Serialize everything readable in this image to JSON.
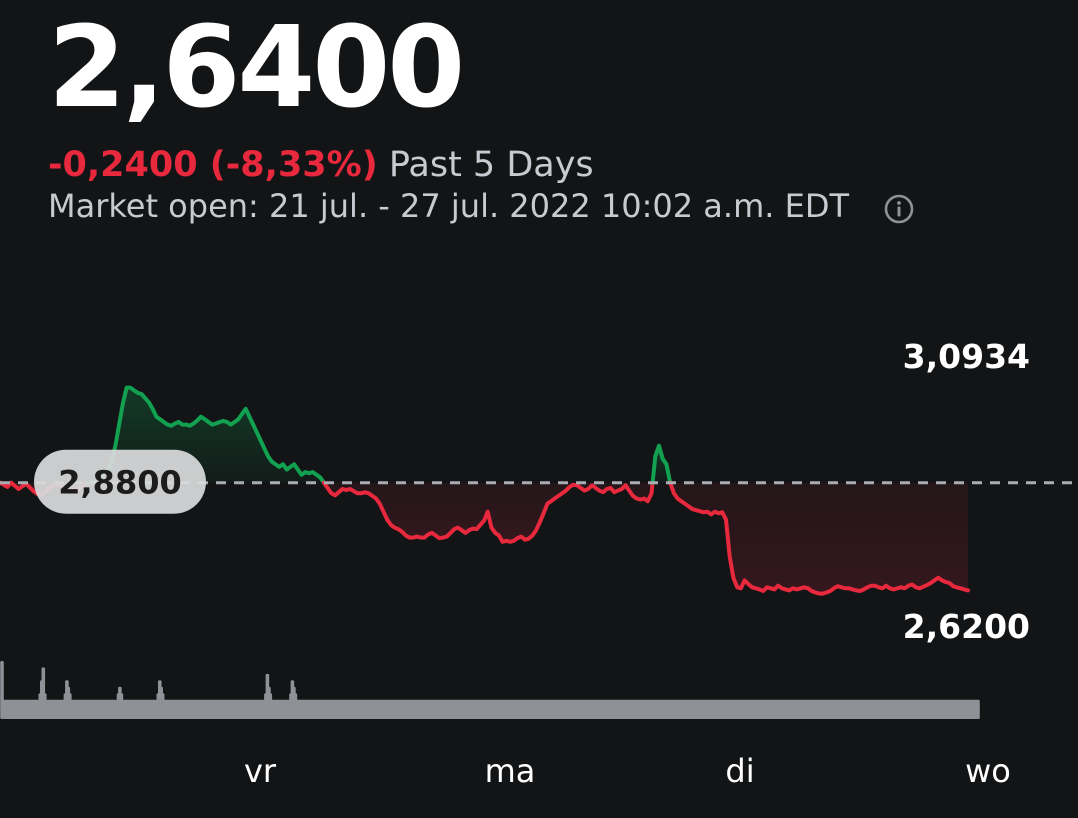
{
  "header": {
    "price": "2,6400",
    "change": "-0,2400 (-8,33%)",
    "period": "Past 5 Days",
    "market_status": "Market open: 21 jul. - 27 jul. 2022 10:02 a.m. EDT",
    "info_icon": "info-icon"
  },
  "colors": {
    "up": "#12a150",
    "down": "#e8293d",
    "background": "#121416",
    "volume": "#8e9297"
  },
  "chart_data": {
    "type": "line",
    "x_tick_labels": [
      "vr",
      "ma",
      "di",
      "wo"
    ],
    "y_axis_labels": {
      "high": "3,0934",
      "low": "2,6200"
    },
    "ylim": [
      2.62,
      3.0934
    ],
    "previous_close": 2.88,
    "previous_close_label": "2,8800",
    "grid": false,
    "series": [
      {
        "values": [
          2.88,
          2.876,
          2.872,
          2.88,
          2.874,
          2.868,
          2.873,
          2.878,
          2.871,
          2.864,
          2.859,
          2.856,
          2.861,
          2.869,
          2.874,
          2.876,
          2.877,
          2.872,
          2.87,
          2.868,
          2.866,
          2.867,
          2.872,
          2.878,
          2.881,
          2.88,
          2.882,
          2.888,
          2.9,
          2.905,
          2.92,
          2.95,
          2.99,
          3.03,
          3.06,
          3.06,
          3.055,
          3.05,
          3.048,
          3.04,
          3.032,
          3.02,
          3.005,
          3.0,
          2.995,
          2.99,
          2.988,
          2.992,
          2.995,
          2.99,
          2.99,
          2.988,
          2.992,
          2.998,
          3.005,
          3.0,
          2.995,
          2.99,
          2.992,
          2.995,
          2.997,
          2.995,
          2.99,
          2.995,
          3.0,
          3.01,
          3.02,
          3.005,
          2.99,
          2.975,
          2.96,
          2.945,
          2.93,
          2.92,
          2.915,
          2.91,
          2.915,
          2.905,
          2.91,
          2.915,
          2.905,
          2.895,
          2.9,
          2.898,
          2.9,
          2.895,
          2.89,
          2.88,
          2.87,
          2.86,
          2.856,
          2.862,
          2.868,
          2.866,
          2.868,
          2.864,
          2.86,
          2.86,
          2.862,
          2.86,
          2.855,
          2.85,
          2.84,
          2.825,
          2.81,
          2.8,
          2.795,
          2.792,
          2.787,
          2.78,
          2.776,
          2.776,
          2.778,
          2.776,
          2.776,
          2.782,
          2.785,
          2.78,
          2.775,
          2.776,
          2.778,
          2.785,
          2.792,
          2.795,
          2.79,
          2.785,
          2.79,
          2.793,
          2.792,
          2.8,
          2.808,
          2.825,
          2.795,
          2.785,
          2.78,
          2.768,
          2.77,
          2.768,
          2.77,
          2.775,
          2.778,
          2.772,
          2.774,
          2.78,
          2.79,
          2.805,
          2.822,
          2.84,
          2.845,
          2.85,
          2.855,
          2.86,
          2.865,
          2.872,
          2.876,
          2.875,
          2.87,
          2.865,
          2.868,
          2.875,
          2.87,
          2.865,
          2.862,
          2.868,
          2.87,
          2.862,
          2.865,
          2.868,
          2.875,
          2.865,
          2.855,
          2.85,
          2.848,
          2.85,
          2.845,
          2.86,
          2.93,
          2.95,
          2.925,
          2.915,
          2.88,
          2.86,
          2.85,
          2.845,
          2.84,
          2.835,
          2.83,
          2.828,
          2.826,
          2.824,
          2.825,
          2.82,
          2.825,
          2.822,
          2.824,
          2.81,
          2.74,
          2.7,
          2.682,
          2.68,
          2.695,
          2.688,
          2.682,
          2.68,
          2.678,
          2.675,
          2.682,
          2.68,
          2.678,
          2.685,
          2.68,
          2.678,
          2.676,
          2.68,
          2.678,
          2.68,
          2.682,
          2.68,
          2.675,
          2.672,
          2.67,
          2.67,
          2.672,
          2.675,
          2.68,
          2.684,
          2.682,
          2.68,
          2.68,
          2.678,
          2.676,
          2.675,
          2.678,
          2.682,
          2.685,
          2.685,
          2.682,
          2.68,
          2.685,
          2.68,
          2.678,
          2.68,
          2.682,
          2.68,
          2.685,
          2.687,
          2.682,
          2.68,
          2.683,
          2.686,
          2.69,
          2.695,
          2.7,
          2.695,
          2.692,
          2.69,
          2.684,
          2.682,
          2.68,
          2.678,
          2.676
        ]
      }
    ],
    "volume": [
      0.09,
      0.03,
      0.03,
      0.03,
      0.03,
      0.03,
      0.03,
      0.03,
      0.03,
      0.03,
      0.03,
      0.03,
      0.03,
      0.03,
      0.03,
      0.03,
      0.03,
      0.03,
      0.03,
      0.03,
      0.03,
      0.03,
      0.03,
      0.03,
      0.03,
      0.03,
      0.04,
      0.06,
      0.08,
      0.04,
      0.03,
      0.03,
      0.03,
      0.03,
      0.03,
      0.03,
      0.03,
      0.03,
      0.03,
      0.03,
      0.03,
      0.03,
      0.03,
      0.04,
      0.06,
      0.05,
      0.04,
      0.03,
      0.03,
      0.03,
      0.03,
      0.03,
      0.03,
      0.03,
      0.03,
      0.03,
      0.03,
      0.03,
      0.03,
      0.03,
      0.03,
      0.03,
      0.03,
      0.03,
      0.03,
      0.03,
      0.03,
      0.03,
      0.03,
      0.03,
      0.03,
      0.03,
      0.03,
      0.03,
      0.03,
      0.03,
      0.03,
      0.03,
      0.03,
      0.04,
      0.05,
      0.04,
      0.03,
      0.03,
      0.03,
      0.03,
      0.03,
      0.03,
      0.03,
      0.03,
      0.03,
      0.03,
      0.03,
      0.03,
      0.03,
      0.03,
      0.03,
      0.03,
      0.03,
      0.03,
      0.03,
      0.03,
      0.03,
      0.03,
      0.03,
      0.03,
      0.04,
      0.06,
      0.05,
      0.04,
      0.03,
      0.03,
      0.03,
      0.03,
      0.03,
      0.03,
      0.03,
      0.03,
      0.03,
      0.03,
      0.03,
      0.03,
      0.03,
      0.03,
      0.03,
      0.03,
      0.03,
      0.03,
      0.03,
      0.03,
      0.03,
      0.03,
      0.03,
      0.03,
      0.03,
      0.03,
      0.03,
      0.03,
      0.03,
      0.03,
      0.03,
      0.03,
      0.03,
      0.03,
      0.03,
      0.03,
      0.03,
      0.03,
      0.03,
      0.03,
      0.03,
      0.03,
      0.03,
      0.03,
      0.03,
      0.03,
      0.03,
      0.03,
      0.03,
      0.03,
      0.03,
      0.03,
      0.03,
      0.03,
      0.03,
      0.03,
      0.03,
      0.03,
      0.03,
      0.03,
      0.03,
      0.03,
      0.03,
      0.03,
      0.03,
      0.03,
      0.03,
      0.03,
      0.03,
      0.04,
      0.07,
      0.05,
      0.04,
      0.03,
      0.03,
      0.03,
      0.03,
      0.03,
      0.03,
      0.03,
      0.03,
      0.03,
      0.03,
      0.03,
      0.03,
      0.03,
      0.04,
      0.06,
      0.05,
      0.04,
      0.03,
      0.03,
      0.03,
      0.03,
      0.03,
      0.03,
      0.03,
      0.03,
      0.03,
      0.03,
      0.03,
      0.03,
      0.03,
      0.03,
      0.03,
      0.03,
      0.03,
      0.03,
      0.03,
      0.03,
      0.03,
      0.03,
      0.03,
      0.03,
      0.03,
      0.03,
      0.03,
      0.03,
      0.03,
      0.03,
      0.03,
      0.03,
      0.03,
      0.03,
      0.03,
      0.03,
      0.03,
      0.03,
      0.03,
      0.03,
      0.03,
      0.03,
      0.03,
      0.03,
      0.03,
      0.03,
      0.03,
      0.03,
      0.03,
      0.03,
      0.03,
      0.03,
      0.03,
      0.03,
      0.03,
      0.03,
      0.03,
      0.03,
      0.03,
      0.03,
      0.03,
      0.03,
      0.03,
      0.03,
      0.03,
      0.03,
      0.03,
      0.03,
      0.03,
      0.03,
      0.03,
      0.03,
      0.03,
      0.03,
      0.03,
      0.03,
      0.03,
      0.03,
      0.03,
      0.03,
      0.03,
      0.03,
      0.03,
      0.03,
      0.03,
      0.03,
      0.03,
      0.03,
      0.03,
      0.03,
      0.03,
      0.03,
      0.03,
      0.03,
      0.03,
      0.03,
      0.03,
      0.03,
      0.03,
      0.03,
      0.03,
      0.03,
      0.03,
      0.03,
      0.03,
      0.03,
      0.03,
      0.03,
      0.03,
      0.03,
      0.03,
      0.03,
      0.03,
      0.03,
      0.03,
      0.03,
      0.03,
      0.03,
      0.03,
      0.03,
      0.03,
      0.03,
      0.03,
      0.03,
      0.03,
      0.03,
      0.03,
      0.03,
      0.03,
      0.03,
      0.03,
      0.03,
      0.03,
      0.03,
      0.03,
      0.03,
      0.03,
      0.03,
      0.03,
      0.03,
      0.03,
      0.03,
      0.03,
      0.03,
      0.03,
      0.03,
      0.03,
      0.03,
      0.03,
      0.03,
      0.03,
      0.03,
      0.03,
      0.03,
      0.03,
      0.03,
      0.03,
      0.03,
      0.03,
      0.03,
      0.03,
      0.03,
      0.03,
      0.03,
      0.03,
      0.03,
      0.03,
      0.03,
      0.03,
      0.03,
      0.03,
      0.03,
      0.03,
      0.03,
      0.03,
      0.03,
      0.03,
      0.03,
      0.03,
      0.03,
      0.03,
      0.03,
      0.03,
      0.03,
      0.03,
      0.03,
      0.03,
      0.03,
      0.03,
      0.03,
      0.03,
      0.03,
      0.03,
      0.03,
      0.03,
      0.03,
      0.03,
      0.03,
      0.03,
      0.03,
      0.03,
      0.03,
      0.03,
      0.03,
      0.03,
      0.03,
      0.03,
      0.03,
      0.03,
      0.03,
      0.03,
      0.03,
      0.03,
      0.03,
      0.03,
      0.03,
      0.03,
      0.03,
      0.03,
      0.03,
      0.03,
      0.03,
      0.03,
      0.03,
      0.03,
      0.03,
      0.03,
      0.03,
      0.03,
      0.03,
      0.03,
      0.03,
      0.03,
      0.03,
      0.03,
      0.03,
      0.03,
      0.03,
      0.03,
      0.03,
      0.03,
      0.03,
      0.03,
      0.03,
      0.03,
      0.03,
      0.03,
      0.03,
      0.03,
      0.03,
      0.03,
      0.03,
      0.03,
      0.03,
      0.03,
      0.03,
      0.03,
      0.03,
      0.03,
      0.03,
      0.03,
      0.03,
      0.03,
      0.03,
      0.03,
      0.03,
      0.03,
      0.03,
      0.03,
      0.03,
      0.03,
      0.03,
      0.03,
      0.03,
      0.03,
      0.03,
      0.03,
      0.03,
      0.03,
      0.03,
      0.03,
      0.03,
      0.03,
      0.03,
      0.03,
      0.03,
      0.03,
      0.03,
      0.03,
      0.03,
      0.03,
      0.03,
      0.03,
      0.03,
      0.03,
      0.03,
      0.03,
      0.03,
      0.03,
      0.03,
      0.03,
      0.03,
      0.03,
      0.03,
      0.03,
      0.03,
      0.03,
      0.03,
      0.03,
      0.03,
      0.03,
      0.03,
      0.03,
      0.03,
      0.03,
      0.03,
      0.03,
      0.03,
      0.03,
      0.03,
      0.03,
      0.03,
      0.03,
      0.03,
      0.03,
      0.03,
      0.03,
      0.03,
      0.03,
      0.03,
      0.03,
      0.03,
      0.03,
      0.03,
      0.03,
      0.03,
      0.03,
      0.03,
      0.03,
      0.03,
      0.03,
      0.03,
      0.03,
      0.03,
      0.03,
      0.03,
      0.03,
      0.03,
      0.03,
      0.03,
      0.03,
      0.03,
      0.03,
      0.03,
      0.03,
      0.03,
      0.03,
      0.03,
      0.03,
      0.03,
      0.03,
      0.03,
      0.03,
      0.03,
      0.03,
      0.03,
      0.03,
      0.03,
      0.03,
      0.03,
      0.03,
      0.03,
      0.03,
      0.03,
      0.03,
      0.03,
      0.03,
      0.03,
      0.03,
      0.03,
      0.03,
      0.03,
      0.03,
      0.03,
      0.03,
      0.03,
      0.03,
      0.03,
      0.03,
      0.03,
      0.03,
      0.03,
      0.03,
      0.03,
      0.03,
      0.03,
      0.03,
      0.03,
      0.03,
      0.03,
      0.03,
      0.03,
      0.03,
      0.03,
      0.03,
      0.03,
      0.03,
      0.03,
      0.03,
      0.03,
      0.03,
      0.03,
      0.03,
      0.03,
      0.03,
      0.03,
      0.03,
      0.03,
      0.03,
      0.03,
      0.03,
      0.03,
      0.03,
      0.03,
      0.03,
      0.03,
      0.03,
      0.03,
      0.03,
      0.03,
      0.03,
      0.03,
      0.03,
      0.03,
      0.03,
      0.03,
      0.03,
      0.03,
      0.03,
      0.03,
      0.03,
      0.03,
      0.03,
      0.03,
      0.03,
      0.03,
      0.03,
      0.03,
      0.03,
      0.03,
      0.03,
      0.03,
      0.03,
      0.03,
      0.03,
      0.03,
      0.03,
      0.03,
      0.03,
      0.03,
      0.03,
      0.03,
      0.03
    ]
  }
}
